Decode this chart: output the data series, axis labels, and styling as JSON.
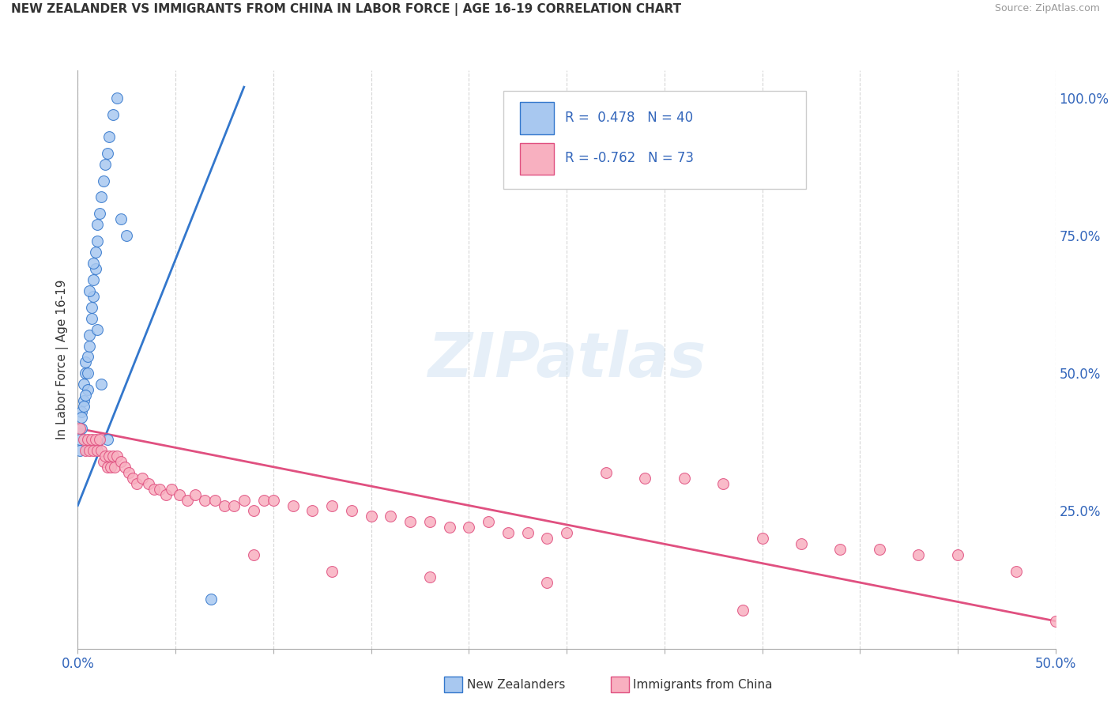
{
  "title": "NEW ZEALANDER VS IMMIGRANTS FROM CHINA IN LABOR FORCE | AGE 16-19 CORRELATION CHART",
  "source": "Source: ZipAtlas.com",
  "ylabel": "In Labor Force | Age 16-19",
  "ylabel_right_ticks": [
    "100.0%",
    "75.0%",
    "50.0%",
    "25.0%"
  ],
  "ylabel_right_vals": [
    1.0,
    0.75,
    0.5,
    0.25
  ],
  "nz_color": "#a8c8f0",
  "nz_line_color": "#3377cc",
  "china_color": "#f8b0c0",
  "china_line_color": "#e05080",
  "xlim": [
    0.0,
    0.5
  ],
  "ylim": [
    0.0,
    1.05
  ],
  "nz_x": [
    0.001,
    0.002,
    0.002,
    0.003,
    0.003,
    0.004,
    0.004,
    0.005,
    0.005,
    0.005,
    0.006,
    0.006,
    0.007,
    0.007,
    0.008,
    0.008,
    0.009,
    0.009,
    0.01,
    0.01,
    0.011,
    0.012,
    0.013,
    0.014,
    0.015,
    0.016,
    0.018,
    0.02,
    0.022,
    0.025,
    0.001,
    0.002,
    0.003,
    0.004,
    0.006,
    0.008,
    0.01,
    0.012,
    0.015,
    0.068
  ],
  "nz_y": [
    0.38,
    0.4,
    0.43,
    0.45,
    0.48,
    0.5,
    0.52,
    0.47,
    0.5,
    0.53,
    0.55,
    0.57,
    0.6,
    0.62,
    0.64,
    0.67,
    0.69,
    0.72,
    0.74,
    0.77,
    0.79,
    0.82,
    0.85,
    0.88,
    0.9,
    0.93,
    0.97,
    1.0,
    0.78,
    0.75,
    0.36,
    0.42,
    0.44,
    0.46,
    0.65,
    0.7,
    0.58,
    0.48,
    0.38,
    0.09
  ],
  "china_x": [
    0.001,
    0.003,
    0.004,
    0.005,
    0.006,
    0.007,
    0.008,
    0.009,
    0.01,
    0.011,
    0.012,
    0.013,
    0.014,
    0.015,
    0.016,
    0.017,
    0.018,
    0.019,
    0.02,
    0.022,
    0.024,
    0.026,
    0.028,
    0.03,
    0.033,
    0.036,
    0.039,
    0.042,
    0.045,
    0.048,
    0.052,
    0.056,
    0.06,
    0.065,
    0.07,
    0.075,
    0.08,
    0.085,
    0.09,
    0.095,
    0.1,
    0.11,
    0.12,
    0.13,
    0.14,
    0.15,
    0.16,
    0.17,
    0.18,
    0.19,
    0.2,
    0.21,
    0.22,
    0.23,
    0.24,
    0.25,
    0.27,
    0.29,
    0.31,
    0.33,
    0.35,
    0.37,
    0.39,
    0.41,
    0.43,
    0.45,
    0.09,
    0.13,
    0.18,
    0.24,
    0.34,
    0.48,
    0.5
  ],
  "china_y": [
    0.4,
    0.38,
    0.36,
    0.38,
    0.36,
    0.38,
    0.36,
    0.38,
    0.36,
    0.38,
    0.36,
    0.34,
    0.35,
    0.33,
    0.35,
    0.33,
    0.35,
    0.33,
    0.35,
    0.34,
    0.33,
    0.32,
    0.31,
    0.3,
    0.31,
    0.3,
    0.29,
    0.29,
    0.28,
    0.29,
    0.28,
    0.27,
    0.28,
    0.27,
    0.27,
    0.26,
    0.26,
    0.27,
    0.25,
    0.27,
    0.27,
    0.26,
    0.25,
    0.26,
    0.25,
    0.24,
    0.24,
    0.23,
    0.23,
    0.22,
    0.22,
    0.23,
    0.21,
    0.21,
    0.2,
    0.21,
    0.32,
    0.31,
    0.31,
    0.3,
    0.2,
    0.19,
    0.18,
    0.18,
    0.17,
    0.17,
    0.17,
    0.14,
    0.13,
    0.12,
    0.07,
    0.14,
    0.05
  ],
  "nz_trendline_x": [
    0.0,
    0.085
  ],
  "nz_trendline_y": [
    0.26,
    1.02
  ],
  "china_trendline_x": [
    0.0,
    0.5
  ],
  "china_trendline_y": [
    0.4,
    0.05
  ]
}
